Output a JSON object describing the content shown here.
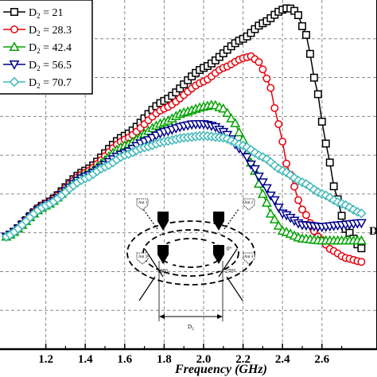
{
  "chart_data": {
    "type": "line",
    "title": "",
    "xlabel": "Frequency (GHz)",
    "ylabel": "",
    "xlim": [
      1.0,
      2.8
    ],
    "ylim": [
      0,
      9
    ],
    "x_ticks": [
      1.2,
      1.4,
      1.6,
      1.8,
      2.0,
      2.2,
      2.4,
      2.6
    ],
    "x_tick_labels": [
      "1.2",
      "1.4",
      "1.6",
      "1.8",
      "2.0",
      "2.2",
      "2.4",
      "2.6"
    ],
    "grid": true,
    "legend_position": "top-left",
    "series": [
      {
        "name": "D₂ = 21",
        "legend_base": "D",
        "legend_sub": "2",
        "legend_value": " = 21",
        "color": "#000000",
        "marker": "square",
        "points": [
          [
            1.0,
            2.9
          ],
          [
            1.2,
            3.75
          ],
          [
            1.4,
            4.6
          ],
          [
            1.6,
            5.5
          ],
          [
            1.8,
            6.4
          ],
          [
            2.0,
            7.25
          ],
          [
            2.2,
            8.0
          ],
          [
            2.3,
            8.4
          ],
          [
            2.4,
            8.75
          ],
          [
            2.43,
            8.8
          ],
          [
            2.47,
            8.7
          ],
          [
            2.52,
            8.1
          ],
          [
            2.57,
            6.8
          ],
          [
            2.62,
            5.3
          ],
          [
            2.67,
            4.0
          ],
          [
            2.72,
            3.1
          ],
          [
            2.8,
            2.6
          ]
        ]
      },
      {
        "name": "D₂ = 28.3",
        "legend_base": "D",
        "legend_sub": "2",
        "legend_value": " = 28.3",
        "color": "#e8000b",
        "marker": "circle",
        "points": [
          [
            1.0,
            2.9
          ],
          [
            1.2,
            3.75
          ],
          [
            1.4,
            4.55
          ],
          [
            1.6,
            5.4
          ],
          [
            1.8,
            6.2
          ],
          [
            2.0,
            6.9
          ],
          [
            2.1,
            7.25
          ],
          [
            2.2,
            7.5
          ],
          [
            2.24,
            7.55
          ],
          [
            2.28,
            7.4
          ],
          [
            2.33,
            6.9
          ],
          [
            2.38,
            5.8
          ],
          [
            2.43,
            4.6
          ],
          [
            2.5,
            3.6
          ],
          [
            2.58,
            2.9
          ],
          [
            2.65,
            2.55
          ],
          [
            2.72,
            2.35
          ],
          [
            2.8,
            2.25
          ]
        ]
      },
      {
        "name": "D₂ = 42.4",
        "legend_base": "D",
        "legend_sub": "2",
        "legend_value": " = 42.4",
        "color": "#00a300",
        "marker": "triangle-up",
        "points": [
          [
            1.0,
            2.9
          ],
          [
            1.2,
            3.7
          ],
          [
            1.4,
            4.5
          ],
          [
            1.6,
            5.25
          ],
          [
            1.8,
            5.85
          ],
          [
            1.9,
            6.1
          ],
          [
            2.0,
            6.25
          ],
          [
            2.05,
            6.3
          ],
          [
            2.1,
            6.2
          ],
          [
            2.15,
            5.9
          ],
          [
            2.2,
            5.4
          ],
          [
            2.25,
            4.7
          ],
          [
            2.3,
            4.0
          ],
          [
            2.35,
            3.4
          ],
          [
            2.4,
            3.05
          ],
          [
            2.5,
            2.85
          ],
          [
            2.6,
            2.8
          ],
          [
            2.8,
            2.8
          ]
        ]
      },
      {
        "name": "D₂ = 56.5",
        "legend_base": "D",
        "legend_sub": "2",
        "legend_value": " = 56.5",
        "color": "#00008b",
        "marker": "triangle-down",
        "points": [
          [
            1.0,
            2.9
          ],
          [
            1.2,
            3.7
          ],
          [
            1.4,
            4.45
          ],
          [
            1.6,
            5.05
          ],
          [
            1.7,
            5.35
          ],
          [
            1.8,
            5.6
          ],
          [
            1.9,
            5.75
          ],
          [
            1.95,
            5.8
          ],
          [
            2.0,
            5.8
          ],
          [
            2.05,
            5.75
          ],
          [
            2.1,
            5.6
          ],
          [
            2.2,
            5.1
          ],
          [
            2.25,
            4.7
          ],
          [
            2.3,
            4.3
          ],
          [
            2.35,
            3.9
          ],
          [
            2.4,
            3.5
          ],
          [
            2.5,
            3.2
          ],
          [
            2.6,
            3.15
          ],
          [
            2.7,
            3.2
          ],
          [
            2.8,
            3.25
          ]
        ]
      },
      {
        "name": "D₂ = 70.7",
        "legend_base": "D",
        "legend_sub": "2",
        "legend_value": " = 70.7",
        "color": "#40b8b8",
        "marker": "diamond",
        "points": [
          [
            1.0,
            2.9
          ],
          [
            1.2,
            3.7
          ],
          [
            1.4,
            4.4
          ],
          [
            1.5,
            4.7
          ],
          [
            1.6,
            5.0
          ],
          [
            1.7,
            5.2
          ],
          [
            1.8,
            5.35
          ],
          [
            1.9,
            5.45
          ],
          [
            2.0,
            5.5
          ],
          [
            2.1,
            5.45
          ],
          [
            2.2,
            5.25
          ],
          [
            2.3,
            4.95
          ],
          [
            2.4,
            4.6
          ],
          [
            2.5,
            4.3
          ],
          [
            2.6,
            4.0
          ],
          [
            2.7,
            3.75
          ],
          [
            2.8,
            3.5
          ]
        ]
      }
    ],
    "annotations": [
      {
        "text": "D",
        "description": "partly visible label at right edge"
      }
    ]
  },
  "inset": {
    "antenna_labels": [
      "Ant 1",
      "Ant 2",
      "Ant 3",
      "Ant 4"
    ],
    "angle_labels": [
      "90°",
      "0°",
      "180°",
      "270°"
    ],
    "dimension_base": "D",
    "dimension_sub": "2"
  }
}
